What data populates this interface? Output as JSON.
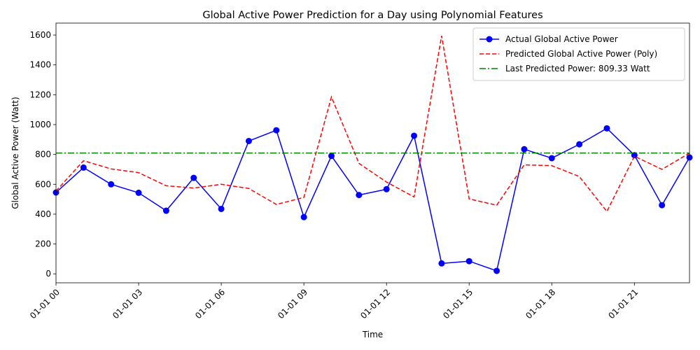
{
  "chart_data": {
    "type": "line",
    "title": "Global Active Power Prediction for a Day using Polynomial Features",
    "xlabel": "Time",
    "ylabel": "Global Active Power (Watt)",
    "x": [
      "00:00",
      "01:00",
      "02:00",
      "03:00",
      "04:00",
      "05:00",
      "06:00",
      "07:00",
      "08:00",
      "09:00",
      "10:00",
      "11:00",
      "12:00",
      "13:00",
      "14:00",
      "15:00",
      "16:00",
      "17:00",
      "18:00",
      "19:00",
      "20:00",
      "21:00",
      "22:00",
      "23:00"
    ],
    "x_ticks": [
      "01-01 00",
      "01-01 03",
      "01-01 06",
      "01-01 09",
      "01-01 12",
      "01-01 15",
      "01-01 18",
      "01-01 21"
    ],
    "ylim": [
      -60,
      1680
    ],
    "y_ticks": [
      0,
      200,
      400,
      600,
      800,
      1000,
      1200,
      1400,
      1600
    ],
    "series": [
      {
        "name": "Actual Global Active Power",
        "color": "#0000ff",
        "style": "solid",
        "marker": "circle",
        "values": [
          545,
          712,
          600,
          543,
          423,
          643,
          435,
          890,
          962,
          380,
          790,
          528,
          567,
          925,
          70,
          85,
          20,
          835,
          775,
          868,
          975,
          795,
          460,
          780
        ]
      },
      {
        "name": "Predicted Global Active Power (Poly)",
        "color": "#ff0000",
        "style": "dashed",
        "marker": "none",
        "values": [
          555,
          758,
          703,
          678,
          590,
          575,
          600,
          572,
          465,
          512,
          1185,
          740,
          615,
          515,
          1595,
          502,
          460,
          730,
          725,
          652,
          418,
          788,
          700,
          809
        ]
      },
      {
        "name": "Last Predicted Power: 809.33 Watt",
        "color": "#008000",
        "style": "dashdot",
        "marker": "none",
        "hline": 809.33
      }
    ],
    "legend_position": "top-right",
    "grid": false
  }
}
